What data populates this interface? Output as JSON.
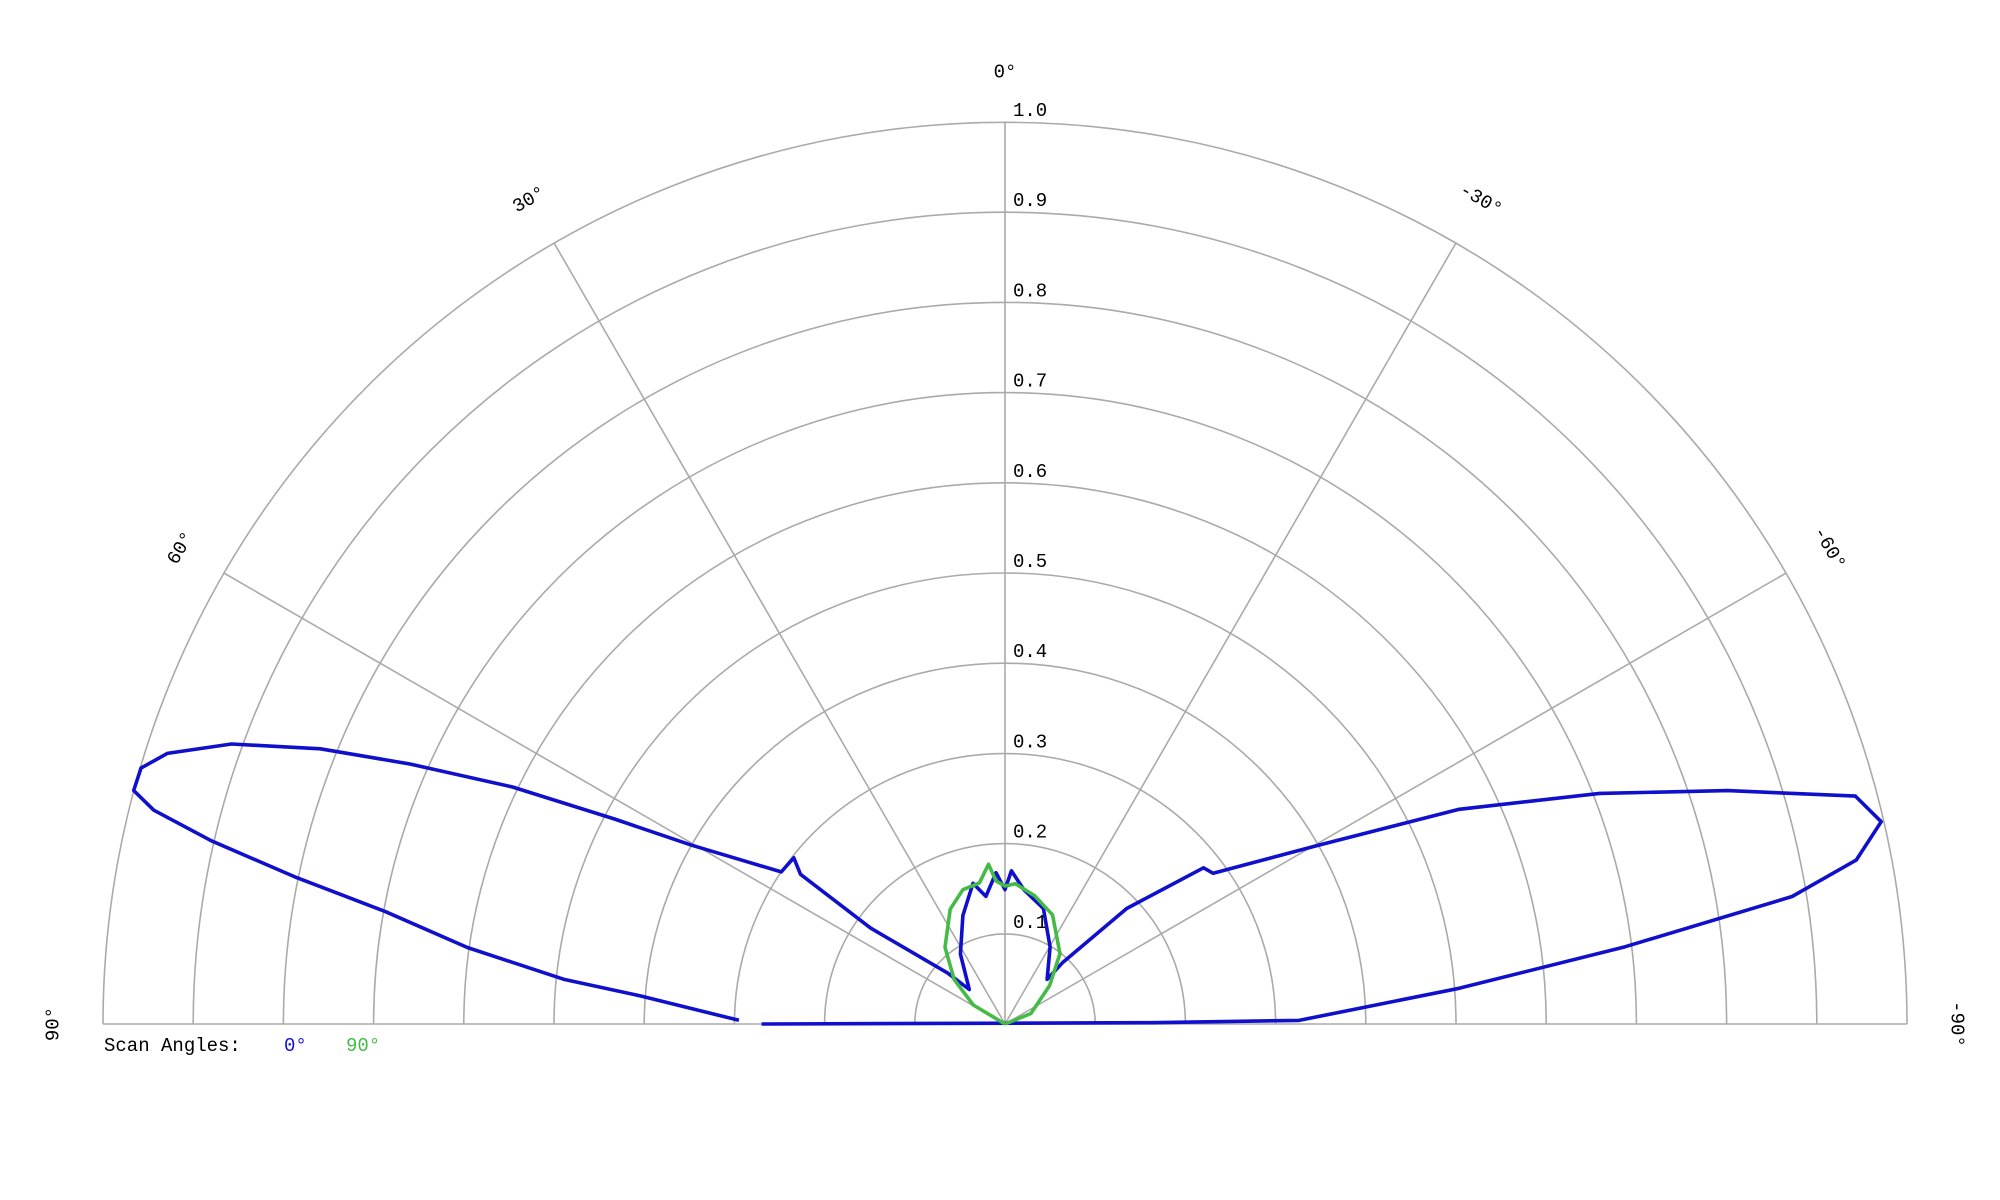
{
  "chart_data": {
    "type": "polar",
    "legend_title": "Scan Angles:",
    "theta_direction": "counterclockwise-from-top",
    "thetalim": [
      90,
      -90
    ],
    "thetaticks": [
      {
        "value": 90,
        "label": "90°"
      },
      {
        "value": 60,
        "label": "60°"
      },
      {
        "value": 30,
        "label": "30°"
      },
      {
        "value": 0,
        "label": "0°"
      },
      {
        "value": -30,
        "label": "-30°"
      },
      {
        "value": -60,
        "label": "-60°"
      },
      {
        "value": -90,
        "label": "-90°"
      }
    ],
    "rlim": [
      0,
      1
    ],
    "rticks": [
      0.1,
      0.2,
      0.3,
      0.4,
      0.5,
      0.6,
      0.7,
      0.8,
      0.9,
      {
        "value": 1,
        "label": "1.0"
      }
    ],
    "grid": true,
    "series": [
      {
        "name": "0°",
        "color": "#1010cc",
        "x": [
          89.2,
          85.6,
          84.2,
          81.9,
          79.7,
          78.3,
          77.0,
          75.9,
          75.0,
          73.5,
          72.1,
          70.1,
          68.1,
          66.4,
          64.3,
          62.3,
          60.3,
          55.8,
          51.8,
          53.8,
          54.5,
          48.4,
          46.0,
          32.5,
          21.2,
          12.8,
          8.5,
          3.4,
          0,
          -2.4,
          -8.1,
          -18.4,
          -30.3,
          -43.3,
          -43.2,
          -46.5,
          -51.8,
          -54.1,
          -60.3,
          -64.7,
          -68.8,
          -72.1,
          -75.0,
          -77.0,
          -79.1,
          -80.8,
          -82.9,
          -85.5,
          -89.3,
          -89.5,
          90
        ],
        "values": [
          0.295,
          0.405,
          0.492,
          0.602,
          0.699,
          0.804,
          0.903,
          0.973,
          1.0,
          0.999,
          0.976,
          0.912,
          0.818,
          0.72,
          0.606,
          0.489,
          0.4,
          0.3,
          0.298,
          0.281,
          0.183,
          0.085,
          0.055,
          0.092,
          0.129,
          0.16,
          0.143,
          0.168,
          0.149,
          0.17,
          0.15,
          0.135,
          0.099,
          0.068,
          0.093,
          0.186,
          0.28,
          0.285,
          0.4,
          0.557,
          0.707,
          0.842,
          0.976,
          0.997,
          0.961,
          0.884,
          0.693,
          0.505,
          0.326,
          0.163,
          0.27
        ]
      },
      {
        "name": "90°",
        "color": "#44bb44",
        "x": [
          90,
          59,
          48.8,
          38,
          25.5,
          17.4,
          10.3,
          5.9,
          3.6,
          0,
          -4.2,
          -13,
          -23.5,
          -38,
          -49.4,
          -68,
          -90
        ],
        "values": [
          0,
          0.041,
          0.075,
          0.108,
          0.141,
          0.156,
          0.159,
          0.178,
          0.159,
          0.153,
          0.156,
          0.146,
          0.132,
          0.099,
          0.065,
          0.031,
          0
        ]
      }
    ]
  }
}
